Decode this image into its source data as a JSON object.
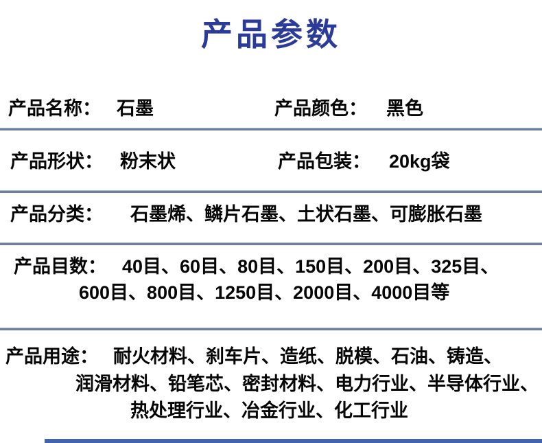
{
  "title": "产品参数",
  "colors": {
    "title": "#2b3b99",
    "divider": "#6f7fa2",
    "text": "#060606",
    "bottom_bar": "#4263ad",
    "background": "#ffffff"
  },
  "rows": [
    {
      "label": "产品名称：",
      "value": "石墨"
    },
    {
      "label": "产品颜色：",
      "value": "黑色"
    },
    {
      "label": "产品形状：",
      "value": "粉末状"
    },
    {
      "label": "产品包装：",
      "value": "20kg袋"
    },
    {
      "label": "产品分类：",
      "value": "石墨烯、鳞片石墨、土状石墨、可膨胀石墨"
    },
    {
      "label": "产品目数：",
      "lines": [
        "40目、60目、80目、150目、200目、325目、",
        "600目、800目、1250目、2000目、4000目等"
      ]
    },
    {
      "label": "产品用途：",
      "lines": [
        "耐火材料、刹车片、造纸、脱模、石油、铸造、",
        "润滑材料、铅笔芯、密封材料、电力行业、半导体行业、",
        "热处理行业、冶金行业、化工行业"
      ]
    }
  ]
}
